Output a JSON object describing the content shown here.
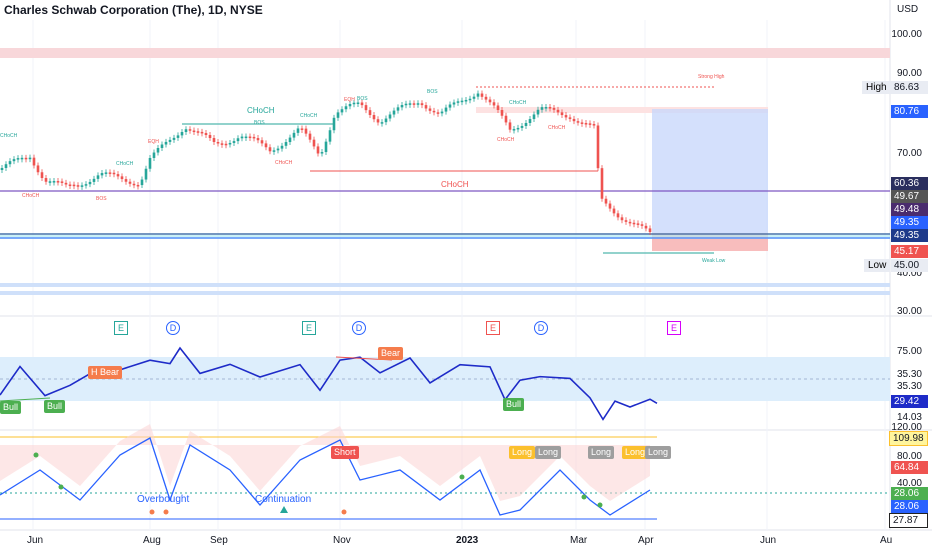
{
  "header": {
    "title": "Charles Schwab Corporation (The), 1D, NYSE",
    "currency": "USD"
  },
  "price_axis": {
    "ticks": [
      "100.00",
      "90.00",
      "70.00",
      "40.00",
      "30.00"
    ]
  },
  "price_labels": {
    "high_label": "High",
    "high_value": "86.63",
    "v1": "80.76",
    "v2": "60.36",
    "v3": "49.67",
    "v4": "49.48",
    "v5": "49.35",
    "v6": "49.35",
    "v7": "45.17",
    "low_label": "Low",
    "low_value": "45.00"
  },
  "rsi_axis": {
    "ticks": [
      "75.00",
      "35.30",
      "35.30",
      "14.03"
    ],
    "current": "29.42"
  },
  "osc_axis": {
    "ticks": [
      "120.00",
      "80.00",
      "40.00"
    ],
    "values": [
      "109.98",
      "64.84",
      "28.06",
      "28.06",
      "27.87"
    ]
  },
  "x_axis": {
    "ticks": [
      "Jun",
      "Aug",
      "Sep",
      "Nov",
      "2023",
      "Mar",
      "Apr",
      "Jun",
      "Au"
    ]
  },
  "events": [
    "E",
    "D",
    "E",
    "D",
    "E",
    "D",
    "E"
  ],
  "smc_labels": {
    "choch": "CHoCH",
    "bos": "BOS",
    "eqh": "EQH",
    "strong_high": "Strong High",
    "weak_low": "Weak Low"
  },
  "rsi_tags": {
    "bull": "Bull",
    "h_bear": "H Bear",
    "bear": "Bear"
  },
  "osc_tags": {
    "short": "Short",
    "long": "Long",
    "overbought": "Overbought",
    "continuation": "Continuation"
  },
  "colors": {
    "up": "#26a69a",
    "down": "#ef5350",
    "rsi_line": "#1e2bc8",
    "purple": "#7e57c2",
    "blue_box": "#2962ff",
    "tag_green": "#4caf50",
    "tag_orange": "#f57c4c",
    "tag_red": "#ef5350",
    "tag_yellow": "#fbc02d",
    "tag_gray": "#9e9e9e"
  }
}
